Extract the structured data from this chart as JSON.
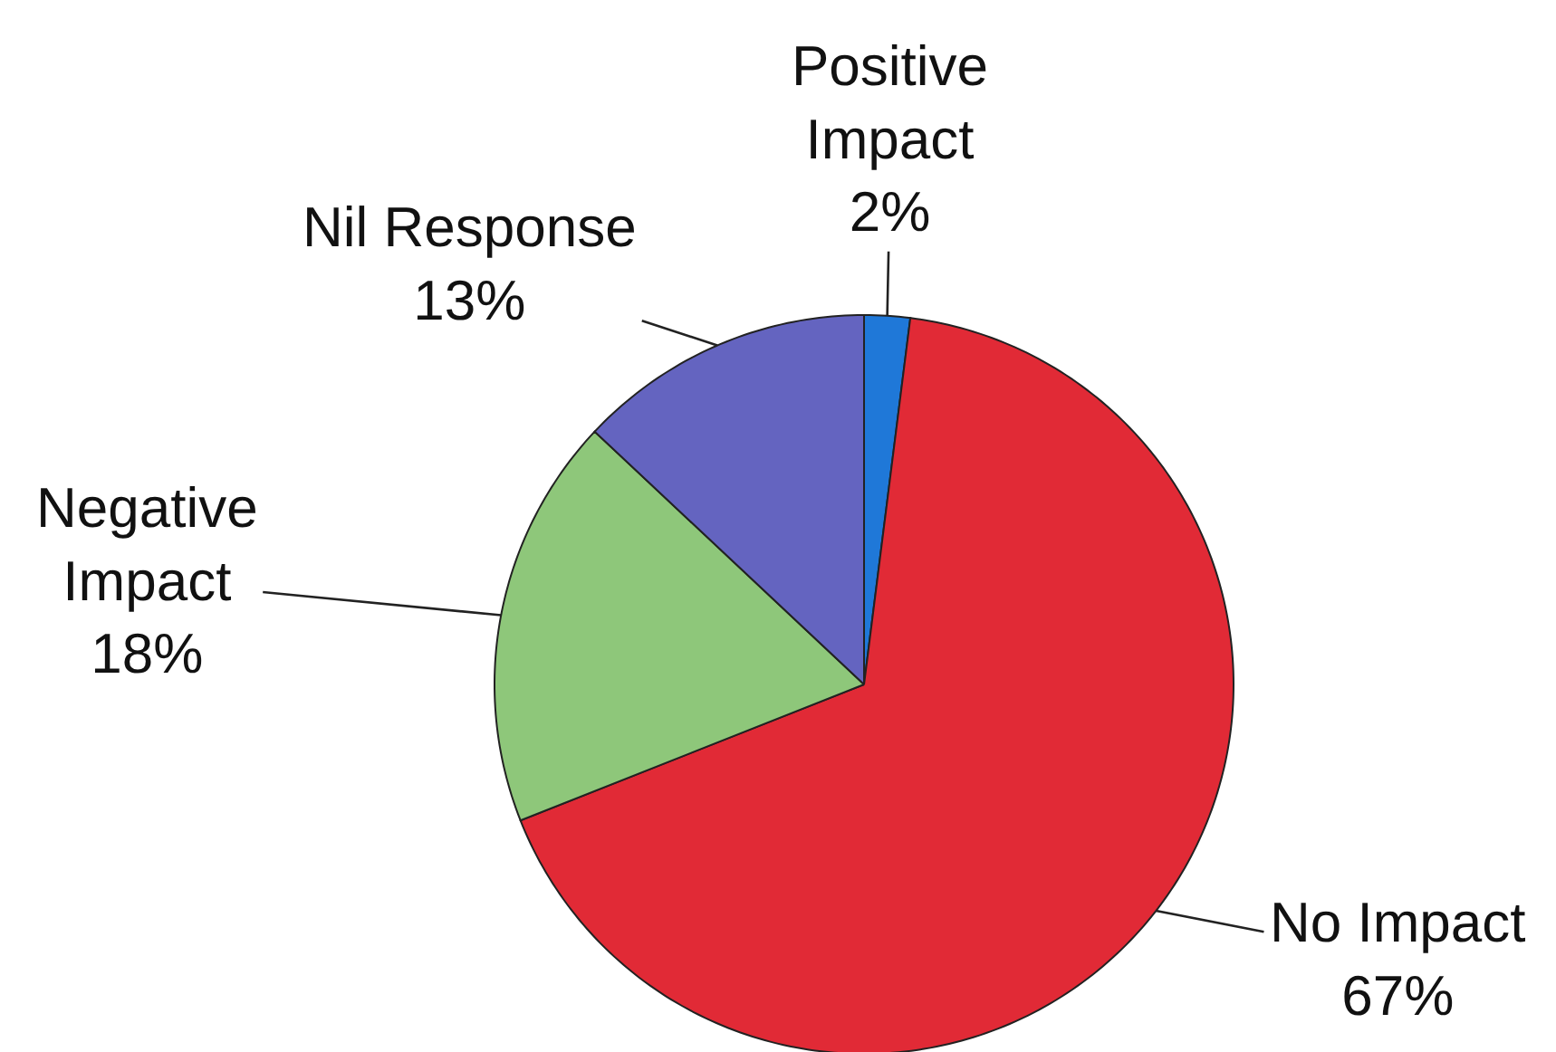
{
  "chart_data": {
    "type": "pie",
    "categories": [
      "Positive Impact",
      "No Impact",
      "Negative Impact",
      "Nil Response"
    ],
    "values": [
      2,
      67,
      18,
      13
    ],
    "value_labels": [
      "2%",
      "67%",
      "18%",
      "13%"
    ],
    "colors": [
      "#1f78d8",
      "#e12a36",
      "#8ec77a",
      "#6464c0"
    ],
    "legend": false
  }
}
